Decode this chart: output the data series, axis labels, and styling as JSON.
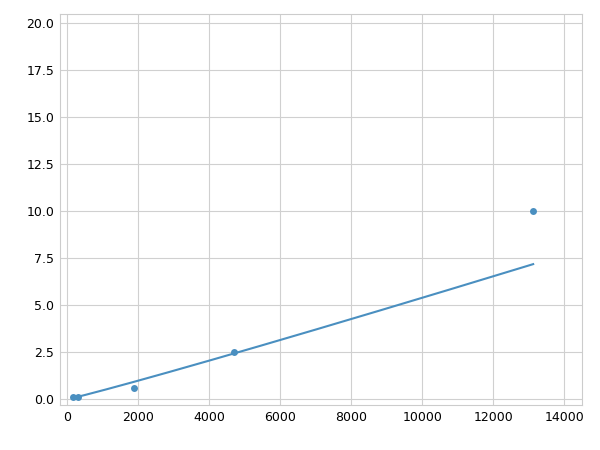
{
  "x": [
    156,
    313,
    625,
    1875,
    4688,
    13125
  ],
  "y": [
    0.1,
    0.15,
    0.2,
    0.6,
    2.5,
    10.0
  ],
  "line_color": "#4a8fc0",
  "marker_color": "#4a8fc0",
  "marker_indices": [
    0,
    1,
    3,
    4,
    5
  ],
  "marker_size": 5,
  "xlim": [
    -200,
    14500
  ],
  "ylim": [
    -0.3,
    20.5
  ],
  "xticks": [
    0,
    2000,
    4000,
    6000,
    8000,
    10000,
    12000,
    14000
  ],
  "xtick_labels": [
    "0",
    "2000",
    "4000",
    "6000",
    "8000",
    "10000",
    "12000",
    "14000"
  ],
  "yticks": [
    0.0,
    2.5,
    5.0,
    7.5,
    10.0,
    12.5,
    15.0,
    17.5,
    20.0
  ],
  "ytick_labels": [
    "0.0",
    "2.5",
    "5.0",
    "7.5",
    "10.0",
    "12.5",
    "15.0",
    "17.5",
    "20.0"
  ],
  "grid": true,
  "grid_color": "#d0d0d0",
  "background_color": "#ffffff",
  "spine_color": "#cccccc",
  "tick_label_fontsize": 9,
  "line_width": 1.5,
  "figure_bg": "#ffffff"
}
